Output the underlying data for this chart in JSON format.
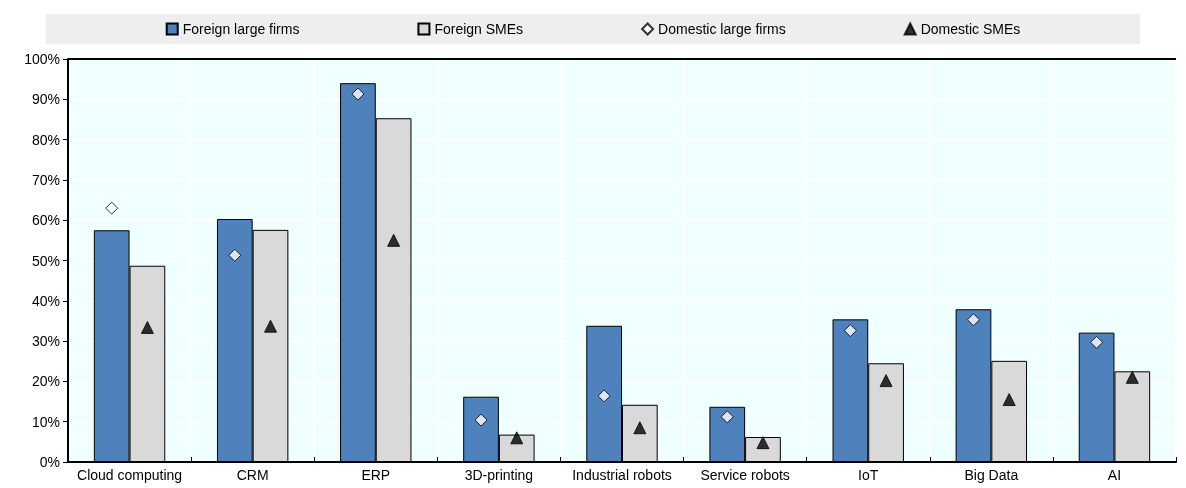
{
  "chart_data": {
    "type": "bar",
    "categories": [
      "Cloud computing",
      "CRM",
      "ERP",
      "3D-printing",
      "Industrial robots",
      "Service robots",
      "IoT",
      "Big Data",
      "AI"
    ],
    "series": [
      {
        "name": "Foreign large firms",
        "color": "#4f81bd",
        "values": [
          57.5,
          60.3,
          94.0,
          16.2,
          33.8,
          13.7,
          35.4,
          37.9,
          32.1
        ]
      },
      {
        "name": "Foreign SMEs",
        "color": "#d9d9d9",
        "values": [
          48.7,
          57.6,
          85.3,
          6.8,
          14.2,
          6.2,
          24.5,
          25.1,
          22.5
        ]
      },
      {
        "name": "Domestic large firms",
        "type": "scatter",
        "marker": "diamond",
        "color": "#ffffff",
        "x": [
          "Cloud computing",
          "CRM",
          "ERP",
          "3D-printing",
          "Industrial robots",
          "Service robots",
          "IoT",
          "Big Data",
          "AI"
        ],
        "values": [
          63.0,
          51.3,
          91.3,
          10.4,
          16.4,
          11.2,
          32.6,
          35.3,
          29.7
        ]
      },
      {
        "name": "Domestic SMEs",
        "type": "scatter",
        "marker": "triangle",
        "color": "#000000",
        "x": [
          "Cloud computing",
          "CRM",
          "ERP",
          "3D-printing",
          "Industrial robots",
          "Service robots",
          "IoT",
          "Big Data",
          "AI"
        ],
        "values": [
          33.4,
          33.7,
          55.0,
          6.0,
          8.5,
          4.8,
          20.2,
          15.5,
          21.0
        ]
      }
    ],
    "ylim": [
      0,
      100
    ],
    "yticks": [
      {
        "value": 0,
        "label": "0%"
      },
      {
        "value": 10,
        "label": "10%"
      },
      {
        "value": 20,
        "label": "20%"
      },
      {
        "value": 30,
        "label": "30%"
      },
      {
        "value": 40,
        "label": "40%"
      },
      {
        "value": 50,
        "label": "50%"
      },
      {
        "value": 60,
        "label": "60%"
      },
      {
        "value": 70,
        "label": "70%"
      },
      {
        "value": 80,
        "label": "80%"
      },
      {
        "value": 90,
        "label": "90%"
      },
      {
        "value": 100,
        "label": "100%"
      }
    ],
    "grid": true,
    "legend": "top"
  }
}
